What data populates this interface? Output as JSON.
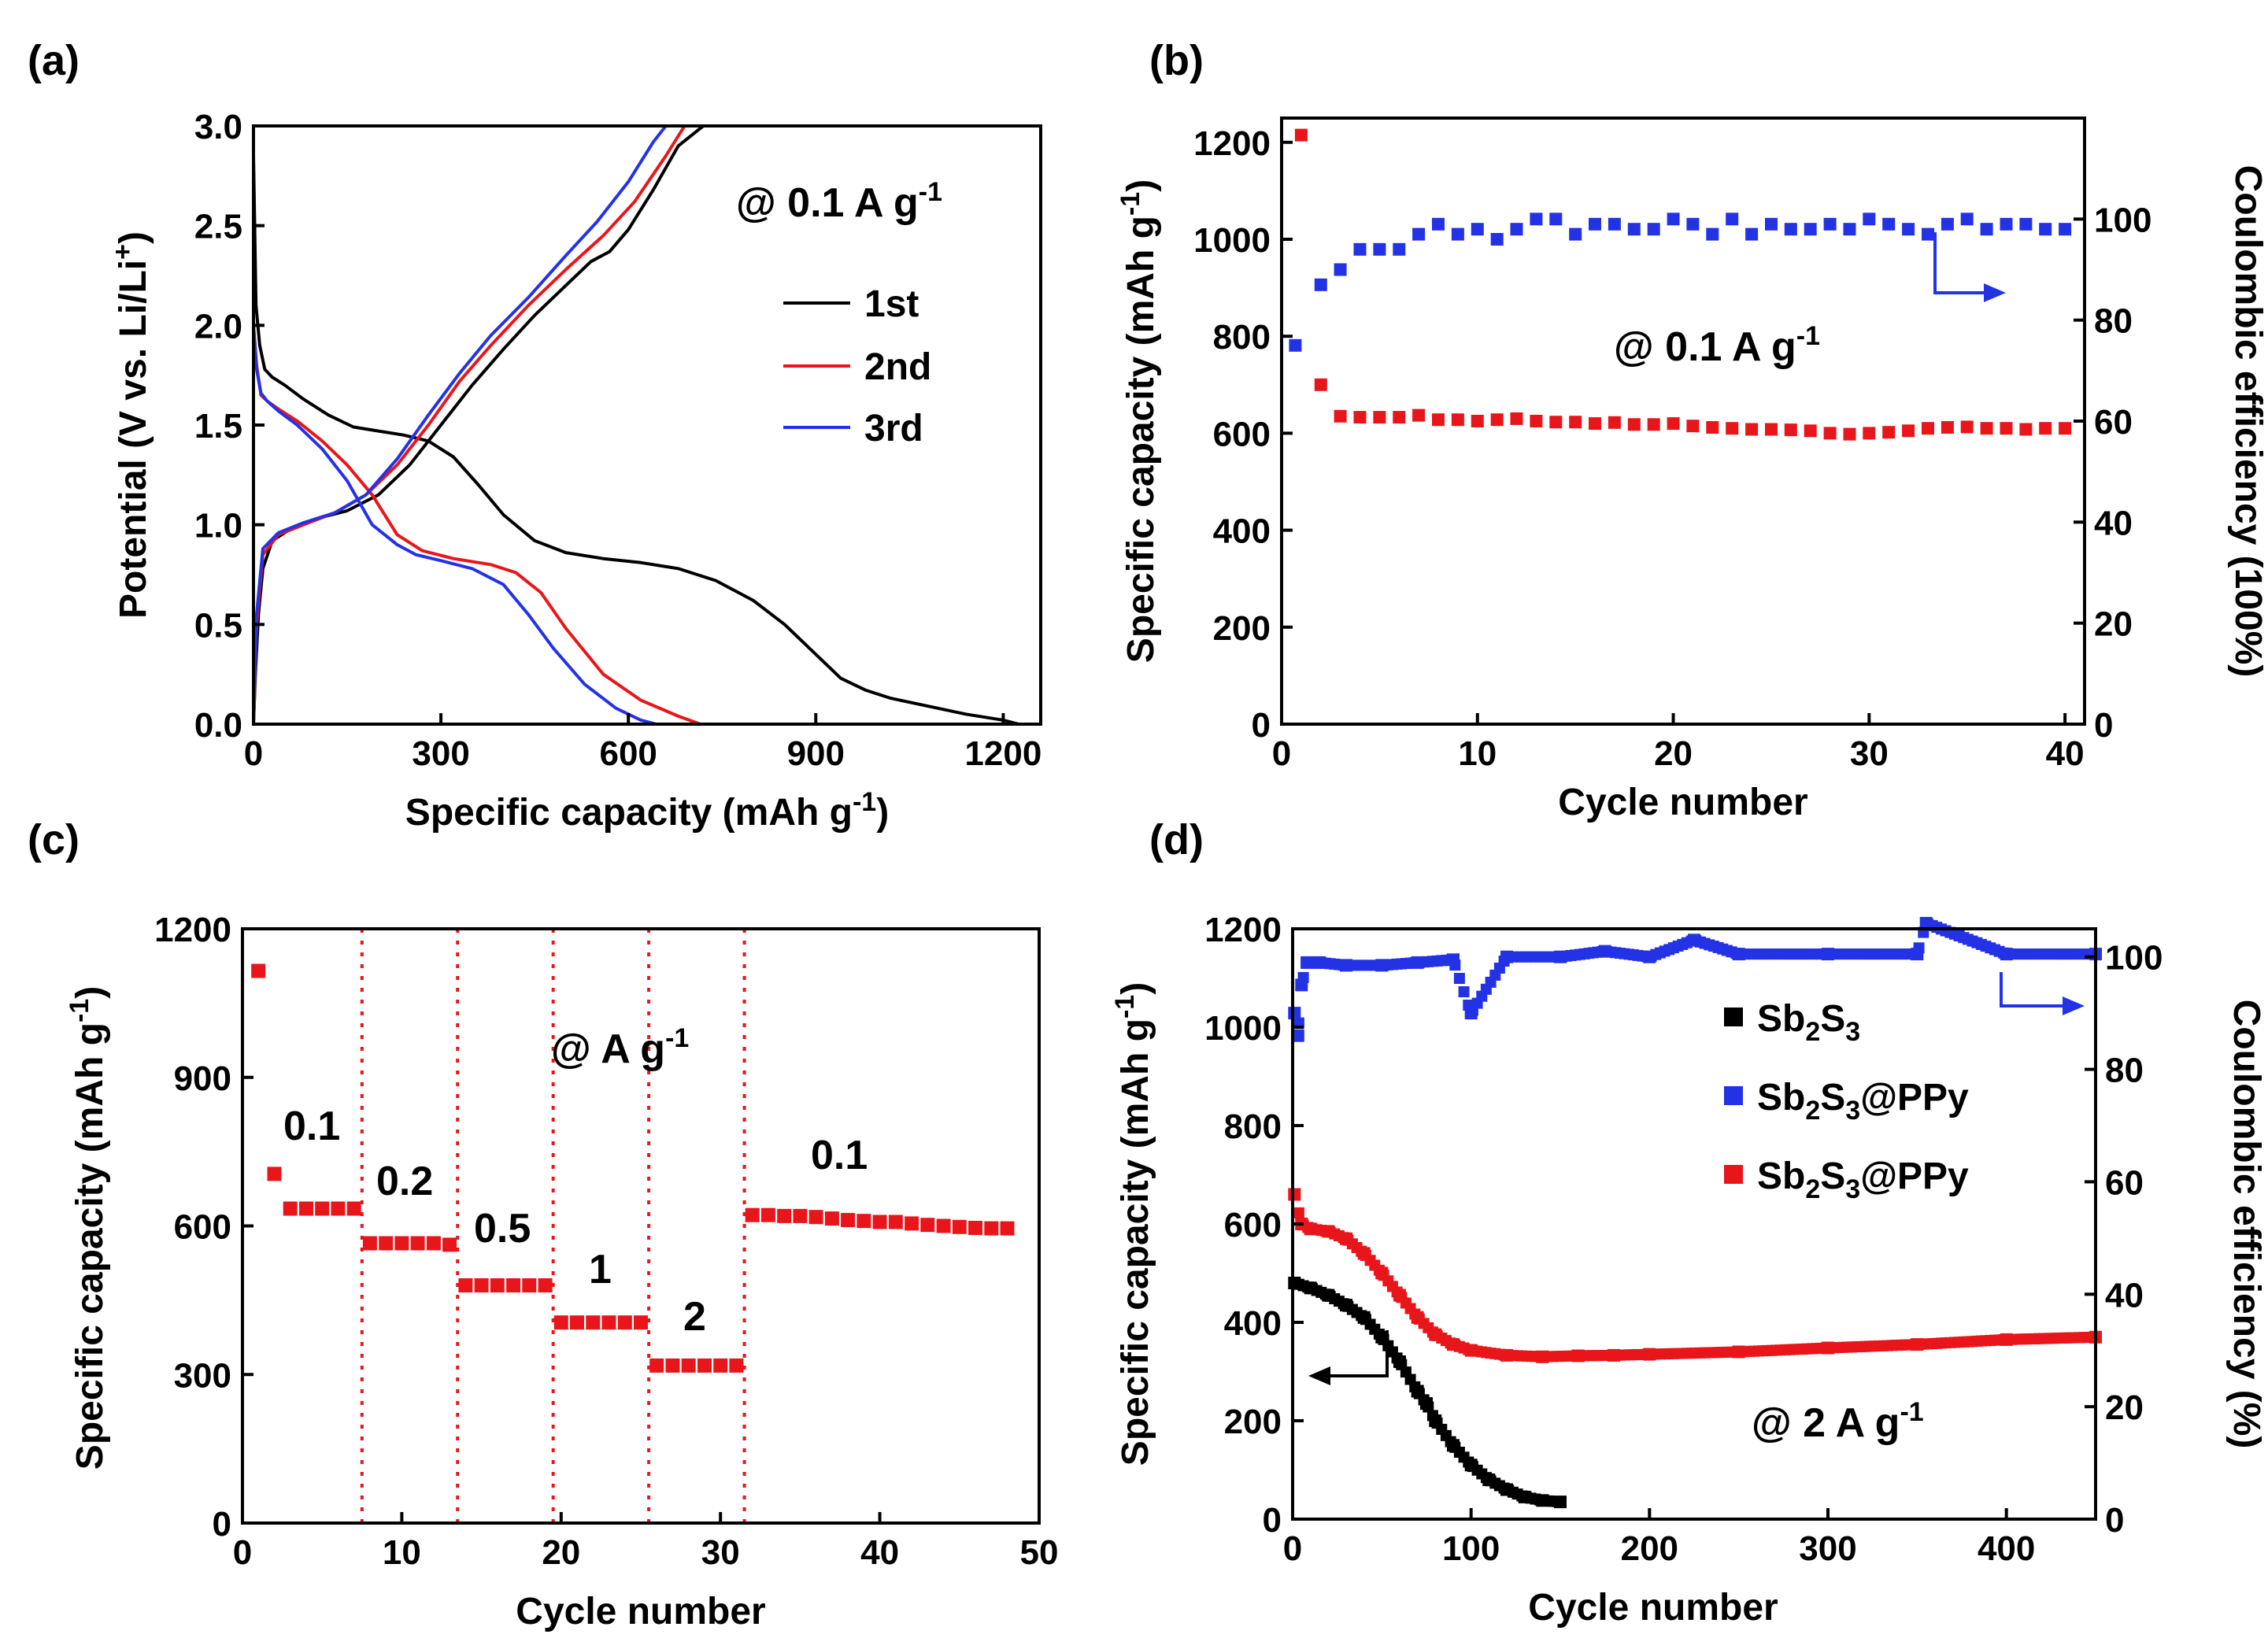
{
  "chart_data": [
    {
      "id": "a",
      "panel_label": "(a)",
      "type": "line",
      "xlabel": "Specific capacity (mAh g",
      "xlabel_sup": "-1",
      "xlabel_end": ")",
      "ylabel": "Potential (V vs. Li/Li",
      "ylabel_sup": "+",
      "ylabel_end": ")",
      "xlim": [
        0,
        1260
      ],
      "ylim": [
        0,
        3.0
      ],
      "xticks": [
        "0",
        "300",
        "600",
        "900",
        "1200"
      ],
      "yticks": [
        "0.0",
        "0.5",
        "1.0",
        "1.5",
        "2.0",
        "2.5",
        "3.0"
      ],
      "annotation": "@ 0.1 A g",
      "annotation_sup": "-1",
      "legend": [
        {
          "label": "1st",
          "color": "#000000"
        },
        {
          "label": "2nd",
          "color": "#e8161b"
        },
        {
          "label": "3rd",
          "color": "#2432e6"
        }
      ],
      "series": [
        {
          "name": "1st discharge",
          "color": "#000000",
          "x": [
            0,
            4,
            10,
            18,
            30,
            50,
            80,
            120,
            160,
            200,
            240,
            280,
            320,
            360,
            400,
            450,
            500,
            560,
            620,
            680,
            740,
            800,
            850,
            900,
            940,
            980,
            1020,
            1080,
            1140,
            1200,
            1225
          ],
          "y": [
            2.85,
            2.1,
            1.9,
            1.78,
            1.74,
            1.7,
            1.63,
            1.55,
            1.49,
            1.47,
            1.45,
            1.42,
            1.34,
            1.2,
            1.05,
            0.92,
            0.86,
            0.83,
            0.81,
            0.78,
            0.72,
            0.62,
            0.5,
            0.35,
            0.23,
            0.17,
            0.13,
            0.09,
            0.05,
            0.02,
            0.0
          ]
        },
        {
          "name": "1st charge",
          "color": "#000000",
          "x": [
            0,
            3,
            8,
            15,
            30,
            60,
            100,
            150,
            200,
            250,
            300,
            350,
            400,
            450,
            500,
            540,
            570,
            600,
            640,
            680,
            720
          ],
          "y": [
            0.0,
            0.25,
            0.55,
            0.78,
            0.92,
            0.98,
            1.03,
            1.07,
            1.15,
            1.3,
            1.5,
            1.7,
            1.88,
            2.05,
            2.2,
            2.32,
            2.37,
            2.48,
            2.68,
            2.9,
            3.0
          ]
        },
        {
          "name": "2nd discharge",
          "color": "#e8161b",
          "x": [
            0,
            5,
            12,
            22,
            40,
            70,
            110,
            150,
            190,
            230,
            270,
            320,
            380,
            420,
            460,
            500,
            560,
            620,
            680,
            715
          ],
          "y": [
            2.0,
            1.8,
            1.65,
            1.62,
            1.58,
            1.52,
            1.42,
            1.3,
            1.15,
            0.95,
            0.87,
            0.83,
            0.8,
            0.76,
            0.66,
            0.48,
            0.25,
            0.12,
            0.04,
            0.0
          ]
        },
        {
          "name": "2nd charge",
          "color": "#e8161b",
          "x": [
            0,
            5,
            15,
            40,
            80,
            130,
            180,
            230,
            280,
            330,
            380,
            440,
            500,
            560,
            610,
            660,
            690
          ],
          "y": [
            0.0,
            0.5,
            0.85,
            0.95,
            1.0,
            1.06,
            1.15,
            1.3,
            1.5,
            1.72,
            1.9,
            2.1,
            2.28,
            2.45,
            2.62,
            2.85,
            3.0
          ]
        },
        {
          "name": "3rd discharge",
          "color": "#2432e6",
          "x": [
            0,
            5,
            12,
            22,
            40,
            70,
            110,
            150,
            190,
            230,
            260,
            300,
            350,
            400,
            440,
            480,
            530,
            580,
            620,
            645
          ],
          "y": [
            2.0,
            1.78,
            1.66,
            1.62,
            1.57,
            1.5,
            1.38,
            1.22,
            1.0,
            0.9,
            0.85,
            0.82,
            0.78,
            0.7,
            0.55,
            0.38,
            0.2,
            0.08,
            0.02,
            0.0
          ]
        },
        {
          "name": "3rd charge",
          "color": "#2432e6",
          "x": [
            0,
            5,
            15,
            40,
            80,
            130,
            180,
            230,
            280,
            330,
            380,
            440,
            500,
            550,
            600,
            640,
            660
          ],
          "y": [
            0.0,
            0.55,
            0.88,
            0.96,
            1.01,
            1.06,
            1.15,
            1.33,
            1.55,
            1.76,
            1.95,
            2.14,
            2.35,
            2.52,
            2.72,
            2.92,
            3.0
          ]
        }
      ]
    },
    {
      "id": "b",
      "panel_label": "(b)",
      "type": "scatter",
      "xlabel": "Cycle number",
      "ylabel": "Specific capacity (mAh g",
      "ylabel_sup": "-1",
      "ylabel_end": ")",
      "y2label": "Coulombic efficiency (100%)",
      "xlim": [
        0,
        41
      ],
      "ylim": [
        0,
        1250
      ],
      "y2lim": [
        0,
        120
      ],
      "xticks": [
        "0",
        "10",
        "20",
        "30",
        "40"
      ],
      "yticks": [
        "0",
        "200",
        "400",
        "600",
        "800",
        "1000",
        "1200"
      ],
      "y2ticks": [
        "0",
        "20",
        "40",
        "60",
        "80",
        "100"
      ],
      "annotation": "@ 0.1 A g",
      "annotation_sup": "-1",
      "series": [
        {
          "name": "Specific capacity",
          "color": "#e8161b",
          "axis": "left",
          "x": [
            1,
            2,
            3,
            4,
            5,
            6,
            7,
            8,
            9,
            10,
            11,
            12,
            13,
            14,
            15,
            16,
            17,
            18,
            19,
            20,
            21,
            22,
            23,
            24,
            25,
            26,
            27,
            28,
            29,
            30,
            31,
            32,
            33,
            34,
            35,
            36,
            37,
            38,
            39,
            40
          ],
          "y": [
            1215,
            700,
            635,
            633,
            633,
            633,
            637,
            628,
            628,
            625,
            628,
            630,
            625,
            623,
            623,
            620,
            622,
            618,
            618,
            620,
            615,
            612,
            610,
            608,
            608,
            607,
            605,
            600,
            598,
            600,
            602,
            605,
            610,
            612,
            613,
            610,
            610,
            608,
            610,
            610
          ]
        },
        {
          "name": "Coulombic efficiency",
          "color": "#2432e6",
          "axis": "right",
          "x": [
            0.7,
            2,
            3,
            4,
            5,
            6,
            7,
            8,
            9,
            10,
            11,
            12,
            13,
            14,
            15,
            16,
            17,
            18,
            19,
            20,
            21,
            22,
            23,
            24,
            25,
            26,
            27,
            28,
            29,
            30,
            31,
            32,
            33,
            34,
            35,
            36,
            37,
            38,
            39,
            40
          ],
          "y": [
            75,
            87,
            90,
            94,
            94,
            94,
            97,
            99,
            97,
            98,
            96,
            98,
            100,
            100,
            97,
            99,
            99,
            98,
            98,
            100,
            99,
            97,
            100,
            97,
            99,
            98,
            98,
            99,
            98,
            100,
            99,
            98,
            97,
            99,
            100,
            98,
            99,
            99,
            98,
            98
          ]
        }
      ]
    },
    {
      "id": "c",
      "panel_label": "(c)",
      "type": "scatter",
      "xlabel": "Cycle number",
      "ylabel": "Specific capacity (mAh g",
      "ylabel_sup": "-1",
      "ylabel_end": ")",
      "xlim": [
        0,
        50
      ],
      "ylim": [
        0,
        1200
      ],
      "xticks": [
        "0",
        "10",
        "20",
        "30",
        "40",
        "50"
      ],
      "yticks": [
        "0",
        "300",
        "600",
        "900",
        "1200"
      ],
      "annotation": "@ A g",
      "annotation_sup": "-1",
      "rate_labels": [
        "0.1",
        "0.2",
        "0.5",
        "1",
        "2",
        "0.1"
      ],
      "separators": [
        7.5,
        13.5,
        19.5,
        25.5,
        31.5
      ],
      "series": [
        {
          "name": "Rate capability",
          "color": "#e8161b",
          "x": [
            1,
            2,
            3,
            4,
            5,
            6,
            7,
            8,
            9,
            10,
            11,
            12,
            13,
            14,
            15,
            16,
            17,
            18,
            19,
            20,
            21,
            22,
            23,
            24,
            25,
            26,
            27,
            28,
            29,
            30,
            31,
            32,
            33,
            34,
            35,
            36,
            37,
            38,
            39,
            40,
            41,
            42,
            43,
            44,
            45,
            46,
            47,
            48
          ],
          "y": [
            1115,
            705,
            635,
            635,
            635,
            635,
            635,
            565,
            565,
            565,
            565,
            565,
            562,
            480,
            480,
            480,
            480,
            480,
            480,
            405,
            405,
            405,
            405,
            405,
            405,
            318,
            318,
            318,
            318,
            318,
            318,
            622,
            622,
            620,
            620,
            618,
            615,
            612,
            610,
            608,
            608,
            605,
            602,
            600,
            598,
            596,
            595,
            595
          ]
        }
      ]
    },
    {
      "id": "d",
      "panel_label": "(d)",
      "type": "scatter",
      "xlabel": "Cycle number",
      "ylabel": "Specific capacity (mAh g",
      "ylabel_sup": "-1",
      "ylabel_end": ")",
      "y2label": "Coulombic efficiency (%)",
      "xlim": [
        0,
        450
      ],
      "ylim": [
        0,
        1200
      ],
      "y2lim": [
        0,
        105
      ],
      "xticks": [
        "0",
        "100",
        "200",
        "300",
        "400"
      ],
      "yticks": [
        "0",
        "200",
        "400",
        "600",
        "800",
        "1000",
        "1200"
      ],
      "y2ticks": [
        "0",
        "20",
        "40",
        "60",
        "80",
        "100"
      ],
      "annotation": "@ 2 A g",
      "annotation_sup": "-1",
      "legend": [
        {
          "label_main": "Sb",
          "sub1": "2",
          "label_mid": "S",
          "sub2": "3",
          "label_end": "",
          "color": "#000000"
        },
        {
          "label_main": "Sb",
          "sub1": "2",
          "label_mid": "S",
          "sub2": "3",
          "label_end": "@PPy",
          "color": "#2432e6"
        },
        {
          "label_main": "Sb",
          "sub1": "2",
          "label_mid": "S",
          "sub2": "3",
          "label_end": "@PPy",
          "color": "#e8161b"
        }
      ],
      "series": [
        {
          "name": "Sb2S3",
          "color": "#000000",
          "axis": "left",
          "x": [
            1,
            10,
            20,
            30,
            40,
            50,
            60,
            70,
            75,
            80,
            90,
            100,
            110,
            120,
            130,
            140,
            150
          ],
          "y": [
            480,
            470,
            455,
            435,
            410,
            370,
            320,
            260,
            235,
            200,
            150,
            110,
            80,
            60,
            45,
            38,
            35
          ]
        },
        {
          "name": "Sb2S3@PPy capacity",
          "color": "#e8161b",
          "axis": "left",
          "x": [
            1,
            5,
            10,
            20,
            30,
            40,
            50,
            60,
            70,
            80,
            90,
            100,
            120,
            140,
            160,
            180,
            200,
            250,
            300,
            350,
            400,
            450
          ],
          "y": [
            660,
            600,
            590,
            585,
            570,
            540,
            500,
            455,
            410,
            375,
            355,
            343,
            333,
            330,
            332,
            333,
            335,
            340,
            348,
            355,
            365,
            370
          ]
        },
        {
          "name": "Sb2S3@PPy efficiency",
          "color": "#2432e6",
          "axis": "right",
          "x": [
            1,
            3,
            5,
            8,
            15,
            30,
            50,
            70,
            90,
            100,
            120,
            150,
            175,
            200,
            225,
            250,
            300,
            350,
            355,
            400,
            450
          ],
          "y": [
            90,
            86,
            95,
            99,
            99,
            98.5,
            98.5,
            99,
            99.5,
            90,
            100,
            100,
            101,
            100,
            103,
            100.5,
            100.5,
            100.5,
            106,
            100.5,
            100.5
          ]
        }
      ]
    }
  ]
}
